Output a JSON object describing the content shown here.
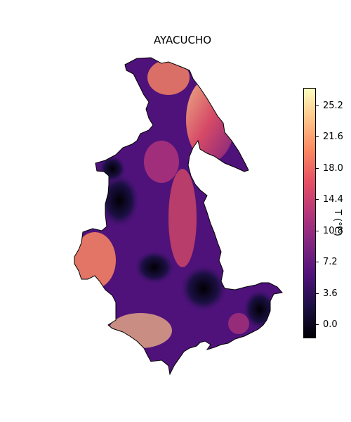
{
  "map": {
    "title": "AYACUCHO",
    "region": "Ayacucho, Peru",
    "colormap": "magma",
    "colormap_stops": [
      "#000004",
      "#1c1044",
      "#4f127b",
      "#812581",
      "#b5367a",
      "#e55064",
      "#fb8761",
      "#fec287",
      "#fcfdbf"
    ]
  },
  "colorbar": {
    "label": "T (°C)",
    "range": [
      -1.6,
      27.2
    ],
    "ticks": [
      "0.0",
      "3.6",
      "7.2",
      "10.8",
      "14.4",
      "18.0",
      "21.6",
      "25.2"
    ],
    "tick_values": [
      0.0,
      3.6,
      7.2,
      10.8,
      14.4,
      18.0,
      21.6,
      25.2
    ]
  }
}
